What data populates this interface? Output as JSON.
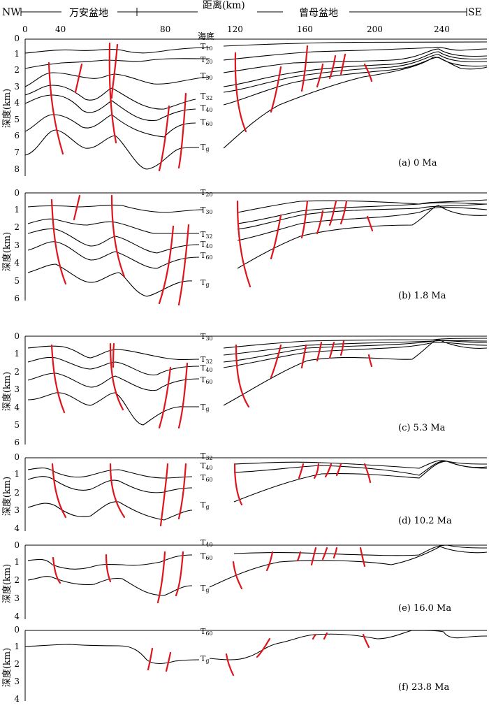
{
  "header": {
    "nw": "NW",
    "se": "SE",
    "basin_west": "万安盆地",
    "basin_east": "曾母盆地",
    "distance_title": "距离(km)",
    "distance_ticks": [
      "0",
      "40",
      "80",
      "120",
      "160",
      "200",
      "240"
    ],
    "seafloor": "海底"
  },
  "depth_label": "深度(km)",
  "panels": [
    {
      "id": "a",
      "caption": "(a)   0 Ma",
      "depth_ticks": [
        "0",
        "1",
        "2",
        "3",
        "4",
        "5",
        "6",
        "7",
        "8"
      ],
      "horizons": [
        {
          "main": "T",
          "sub": "10"
        },
        {
          "main": "T",
          "sub": "20"
        },
        {
          "main": "T",
          "sub": "30"
        },
        {
          "main": "T",
          "sub": "32"
        },
        {
          "main": "T",
          "sub": "40"
        },
        {
          "main": "T",
          "sub": "60"
        },
        {
          "main": "T",
          "sub": "g"
        }
      ]
    },
    {
      "id": "b",
      "caption": "(b)   1.8 Ma",
      "depth_ticks": [
        "0",
        "1",
        "2",
        "3",
        "4",
        "5",
        "6"
      ],
      "horizons": [
        {
          "main": "T",
          "sub": "20"
        },
        {
          "main": "T",
          "sub": "30"
        },
        {
          "main": "T",
          "sub": "32"
        },
        {
          "main": "T",
          "sub": "40"
        },
        {
          "main": "T",
          "sub": "60"
        },
        {
          "main": "T",
          "sub": "g"
        }
      ]
    },
    {
      "id": "c",
      "caption": "(c)   5.3 Ma",
      "depth_ticks": [
        "0",
        "1",
        "2",
        "3",
        "4",
        "5",
        "6"
      ],
      "horizons": [
        {
          "main": "T",
          "sub": "30"
        },
        {
          "main": "T",
          "sub": "32"
        },
        {
          "main": "T",
          "sub": "40"
        },
        {
          "main": "T",
          "sub": "60"
        },
        {
          "main": "T",
          "sub": "g"
        }
      ]
    },
    {
      "id": "d",
      "caption": "(d)   10.2 Ma",
      "depth_ticks": [
        "0",
        "1",
        "2",
        "3",
        "4"
      ],
      "horizons": [
        {
          "main": "T",
          "sub": "32"
        },
        {
          "main": "T",
          "sub": "40"
        },
        {
          "main": "T",
          "sub": "60"
        },
        {
          "main": "T",
          "sub": "g"
        }
      ]
    },
    {
      "id": "e",
      "caption": "(e)   16.0 Ma",
      "depth_ticks": [
        "0",
        "1",
        "2",
        "3",
        "4"
      ],
      "horizons": [
        {
          "main": "T",
          "sub": "40"
        },
        {
          "main": "T",
          "sub": "60"
        },
        {
          "main": "T",
          "sub": "g"
        }
      ]
    },
    {
      "id": "f",
      "caption": "(f)   23.8 Ma",
      "depth_ticks": [
        "0",
        "1",
        "2",
        "3",
        "4"
      ],
      "horizons": [
        {
          "main": "T",
          "sub": "60"
        },
        {
          "main": "T",
          "sub": "g"
        }
      ]
    }
  ],
  "colors": {
    "fault": "#e0141c",
    "horizon": "#000000"
  }
}
